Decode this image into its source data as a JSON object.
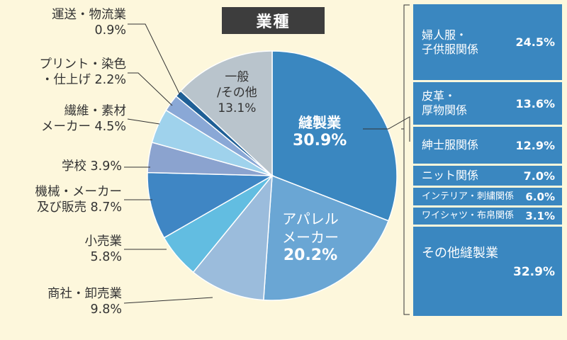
{
  "chart_data": {
    "type": "pie",
    "title": "業種",
    "slices": [
      {
        "label": "縫製業",
        "value": 30.9,
        "color": "#3a87c0"
      },
      {
        "label": "アパレルメーカー",
        "value": 20.2,
        "color": "#6aa6d4"
      },
      {
        "label": "商社・卸売業",
        "value": 9.8,
        "color": "#9bbcdc"
      },
      {
        "label": "小売業",
        "value": 5.8,
        "color": "#62bde1"
      },
      {
        "label": "機械・メーカー及び販売",
        "value": 8.7,
        "color": "#3f86c4"
      },
      {
        "label": "学校",
        "value": 3.9,
        "color": "#8ba3cf"
      },
      {
        "label": "繊維・素材メーカー",
        "value": 4.5,
        "color": "#9fd2ec"
      },
      {
        "label": "プリント・染色・仕上げ",
        "value": 2.2,
        "color": "#8aa8d6"
      },
      {
        "label": "運送・物流業",
        "value": 0.9,
        "color": "#1f5f96"
      },
      {
        "label": "一般/その他",
        "value": 13.1,
        "color": "#b9c4cc"
      }
    ],
    "breakdown": {
      "parent": "縫製業",
      "items": [
        {
          "label": "婦人服・子供服関係",
          "value": 24.5
        },
        {
          "label": "皮革・厚物関係",
          "value": 13.6
        },
        {
          "label": "紳士服関係",
          "value": 12.9
        },
        {
          "label": "ニット関係",
          "value": 7.0
        },
        {
          "label": "インテリア・刺繍関係",
          "value": 6.0
        },
        {
          "label": "ワイシャツ・布帛関係",
          "value": 3.1
        },
        {
          "label": "その他縫製業",
          "value": 32.9
        }
      ]
    }
  },
  "labels": {
    "seihou_name": "縫製業",
    "seihou_val": "30.9%",
    "apparel_l1": "アパレル",
    "apparel_l2": "メーカー",
    "apparel_val": "20.2%",
    "ippan_l1": "一般",
    "ippan_l2": "/その他",
    "ippan_val": "13.1%",
    "unso_l1": "運送・物流業",
    "unso_l2": "0.9%",
    "print_l1": "プリント・染色",
    "print_l2": "・仕上げ 2.2%",
    "seni_l1": "繊維・素材",
    "seni_l2": "メーカー 4.5%",
    "gakko": "学校 3.9%",
    "kikai_l1": "機械・メーカー",
    "kikai_l2": "及び販売 8.7%",
    "kouri_l1": "小売業",
    "kouri_l2": "5.8%",
    "shosha_l1": "商社・卸売業",
    "shosha_l2": "9.8%"
  },
  "breakdown_text": {
    "b1_l1": "婦人服・",
    "b1_l2": "子供服関係",
    "b1_v": "24.5%",
    "b2_l1": "皮革・",
    "b2_l2": "厚物関係",
    "b2_v": "13.6%",
    "b3": "紳士服関係",
    "b3_v": "12.9%",
    "b4": "ニット関係",
    "b4_v": "7.0%",
    "b5": "インテリア・刺繍関係",
    "b5_v": "6.0%",
    "b6": "ワイシャツ・布帛関係",
    "b6_v": "3.1%",
    "b7": "その他縫製業",
    "b7_v": "32.9%"
  }
}
